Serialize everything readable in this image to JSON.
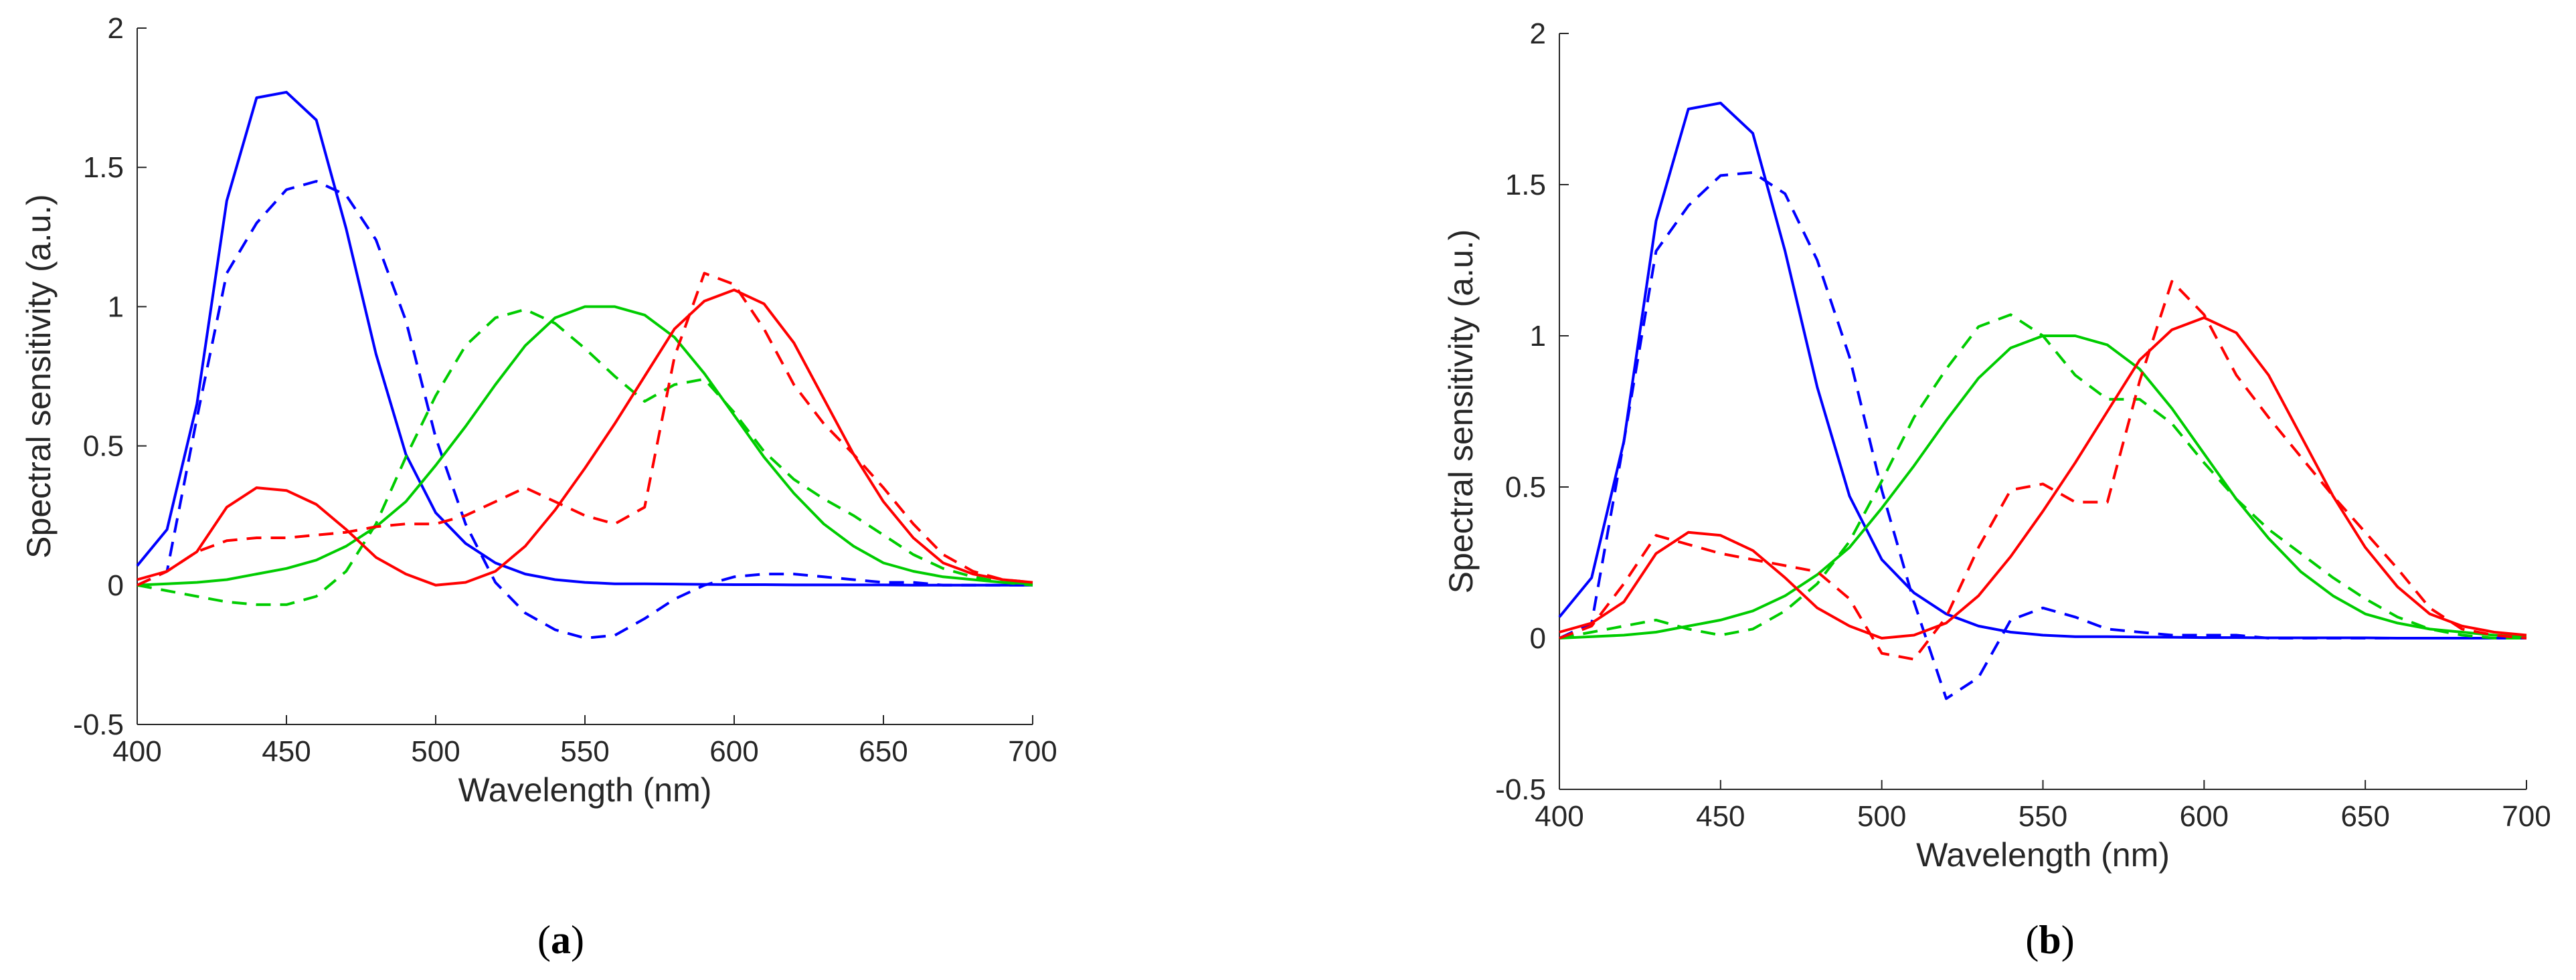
{
  "chart_data": [
    {
      "panel": "a",
      "type": "line",
      "xlabel": "Wavelength (nm)",
      "ylabel": "Spectral sensitivity (a.u.)",
      "xlim": [
        400,
        700
      ],
      "ylim": [
        -0.5,
        2
      ],
      "xticks": [
        "400",
        "450",
        "500",
        "550",
        "600",
        "650",
        "700"
      ],
      "yticks": [
        "-0.5",
        "0",
        "0.5",
        "1",
        "1.5",
        "2"
      ],
      "grid": false,
      "x": [
        400,
        410,
        420,
        430,
        440,
        450,
        460,
        470,
        480,
        490,
        500,
        510,
        520,
        530,
        540,
        550,
        560,
        570,
        580,
        590,
        600,
        610,
        620,
        630,
        640,
        650,
        660,
        670,
        680,
        690,
        700
      ],
      "series": [
        {
          "name": "blue solid",
          "color": "#0000ff",
          "dash": "solid",
          "values": [
            0.07,
            0.2,
            0.65,
            1.38,
            1.75,
            1.77,
            1.67,
            1.28,
            0.83,
            0.47,
            0.26,
            0.15,
            0.08,
            0.04,
            0.02,
            0.01,
            0.005,
            0.005,
            0.004,
            0.003,
            0.002,
            0.002,
            0.001,
            0.001,
            0.001,
            0.001,
            0.0,
            0.0,
            0.0,
            0.0,
            0.0
          ]
        },
        {
          "name": "blue dashed",
          "color": "#0000ff",
          "dash": "dashed",
          "values": [
            0.0,
            0.05,
            0.6,
            1.12,
            1.3,
            1.42,
            1.45,
            1.4,
            1.24,
            0.95,
            0.53,
            0.22,
            0.01,
            -0.1,
            -0.16,
            -0.19,
            -0.18,
            -0.12,
            -0.05,
            0.0,
            0.03,
            0.04,
            0.04,
            0.03,
            0.02,
            0.01,
            0.01,
            0.0,
            0.0,
            0.0,
            0.0
          ]
        },
        {
          "name": "green solid",
          "color": "#00cc00",
          "dash": "solid",
          "values": [
            0.0,
            0.005,
            0.01,
            0.02,
            0.04,
            0.06,
            0.09,
            0.14,
            0.21,
            0.3,
            0.43,
            0.57,
            0.72,
            0.86,
            0.96,
            1.0,
            1.0,
            0.97,
            0.89,
            0.76,
            0.61,
            0.46,
            0.33,
            0.22,
            0.14,
            0.08,
            0.05,
            0.03,
            0.02,
            0.01,
            0.005
          ]
        },
        {
          "name": "green dashed",
          "color": "#00cc00",
          "dash": "dashed",
          "values": [
            0.0,
            -0.02,
            -0.04,
            -0.06,
            -0.07,
            -0.07,
            -0.04,
            0.05,
            0.22,
            0.46,
            0.68,
            0.86,
            0.96,
            0.99,
            0.94,
            0.85,
            0.75,
            0.66,
            0.72,
            0.74,
            0.62,
            0.48,
            0.38,
            0.31,
            0.25,
            0.18,
            0.11,
            0.06,
            0.03,
            0.01,
            0.0
          ]
        },
        {
          "name": "red solid",
          "color": "#ff0000",
          "dash": "solid",
          "values": [
            0.02,
            0.05,
            0.12,
            0.28,
            0.35,
            0.34,
            0.29,
            0.2,
            0.1,
            0.04,
            0.0,
            0.01,
            0.05,
            0.14,
            0.27,
            0.42,
            0.58,
            0.75,
            0.92,
            1.02,
            1.06,
            1.01,
            0.87,
            0.67,
            0.47,
            0.3,
            0.17,
            0.08,
            0.04,
            0.02,
            0.01
          ]
        },
        {
          "name": "red dashed",
          "color": "#ff0000",
          "dash": "dashed",
          "values": [
            0.0,
            0.05,
            0.12,
            0.16,
            0.17,
            0.17,
            0.18,
            0.19,
            0.21,
            0.22,
            0.22,
            0.25,
            0.3,
            0.35,
            0.3,
            0.25,
            0.22,
            0.28,
            0.82,
            1.12,
            1.08,
            0.92,
            0.72,
            0.58,
            0.47,
            0.35,
            0.22,
            0.11,
            0.05,
            0.02,
            0.01
          ]
        }
      ]
    },
    {
      "panel": "b",
      "type": "line",
      "xlabel": "Wavelength (nm)",
      "ylabel": "Spectral sensitivity (a.u.)",
      "xlim": [
        400,
        700
      ],
      "ylim": [
        -0.5,
        2
      ],
      "xticks": [
        "400",
        "450",
        "500",
        "550",
        "600",
        "650",
        "700"
      ],
      "yticks": [
        "-0.5",
        "0",
        "0.5",
        "1",
        "1.5",
        "2"
      ],
      "grid": false,
      "x": [
        400,
        410,
        420,
        430,
        440,
        450,
        460,
        470,
        480,
        490,
        500,
        510,
        520,
        530,
        540,
        550,
        560,
        570,
        580,
        590,
        600,
        610,
        620,
        630,
        640,
        650,
        660,
        670,
        680,
        690,
        700
      ],
      "series": [
        {
          "name": "blue solid",
          "color": "#0000ff",
          "dash": "solid",
          "values": [
            0.07,
            0.2,
            0.65,
            1.38,
            1.75,
            1.77,
            1.67,
            1.28,
            0.83,
            0.47,
            0.26,
            0.15,
            0.08,
            0.04,
            0.02,
            0.01,
            0.005,
            0.005,
            0.004,
            0.003,
            0.002,
            0.002,
            0.001,
            0.001,
            0.001,
            0.001,
            0.0,
            0.0,
            0.0,
            0.0,
            0.0
          ]
        },
        {
          "name": "blue dashed",
          "color": "#0000ff",
          "dash": "dashed",
          "values": [
            0.0,
            0.05,
            0.65,
            1.28,
            1.43,
            1.53,
            1.54,
            1.47,
            1.25,
            0.93,
            0.49,
            0.12,
            -0.2,
            -0.13,
            0.06,
            0.1,
            0.07,
            0.03,
            0.02,
            0.01,
            0.01,
            0.01,
            0.0,
            0.0,
            0.0,
            0.0,
            0.0,
            0.0,
            0.0,
            0.0,
            0.0
          ]
        },
        {
          "name": "green solid",
          "color": "#00cc00",
          "dash": "solid",
          "values": [
            0.0,
            0.005,
            0.01,
            0.02,
            0.04,
            0.06,
            0.09,
            0.14,
            0.21,
            0.3,
            0.43,
            0.57,
            0.72,
            0.86,
            0.96,
            1.0,
            1.0,
            0.97,
            0.89,
            0.76,
            0.61,
            0.46,
            0.33,
            0.22,
            0.14,
            0.08,
            0.05,
            0.03,
            0.02,
            0.01,
            0.005
          ]
        },
        {
          "name": "green dashed",
          "color": "#00cc00",
          "dash": "dashed",
          "values": [
            0.0,
            0.02,
            0.04,
            0.06,
            0.03,
            0.01,
            0.03,
            0.09,
            0.18,
            0.32,
            0.52,
            0.73,
            0.89,
            1.03,
            1.07,
            1.0,
            0.87,
            0.79,
            0.79,
            0.71,
            0.58,
            0.46,
            0.36,
            0.28,
            0.2,
            0.13,
            0.07,
            0.03,
            0.01,
            0.0,
            0.0
          ]
        },
        {
          "name": "red solid",
          "color": "#ff0000",
          "dash": "solid",
          "values": [
            0.02,
            0.05,
            0.12,
            0.28,
            0.35,
            0.34,
            0.29,
            0.2,
            0.1,
            0.04,
            0.0,
            0.01,
            0.05,
            0.14,
            0.27,
            0.42,
            0.58,
            0.75,
            0.92,
            1.02,
            1.06,
            1.01,
            0.87,
            0.67,
            0.47,
            0.3,
            0.17,
            0.08,
            0.04,
            0.02,
            0.01
          ]
        },
        {
          "name": "red dashed",
          "color": "#ff0000",
          "dash": "dashed",
          "values": [
            0.0,
            0.04,
            0.18,
            0.34,
            0.31,
            0.28,
            0.26,
            0.24,
            0.22,
            0.13,
            -0.05,
            -0.07,
            0.07,
            0.3,
            0.49,
            0.51,
            0.45,
            0.45,
            0.85,
            1.18,
            1.07,
            0.87,
            0.73,
            0.6,
            0.47,
            0.35,
            0.23,
            0.1,
            0.03,
            0.01,
            0.0
          ]
        }
      ]
    }
  ],
  "captions": {
    "a": {
      "open": "(",
      "letter": "a",
      "close": ")"
    },
    "b": {
      "open": "(",
      "letter": "b",
      "close": ")"
    }
  }
}
